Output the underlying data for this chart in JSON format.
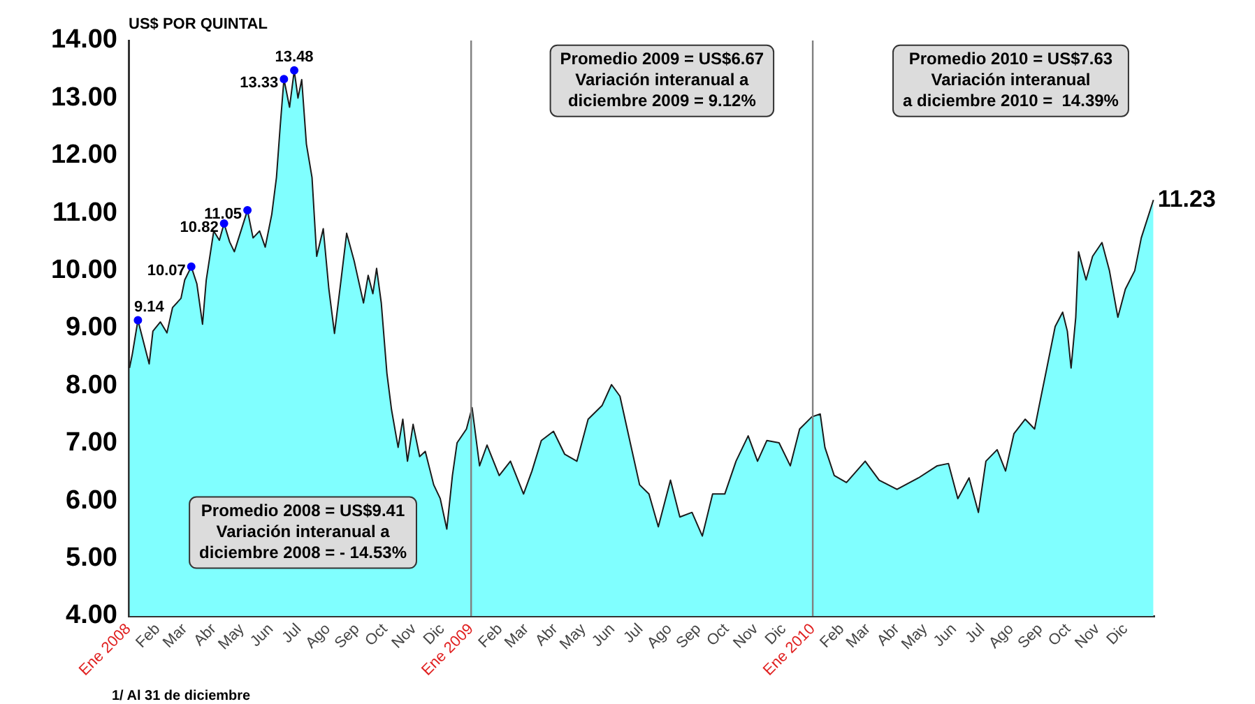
{
  "chart_data": {
    "type": "area",
    "ylabel": "US$ POR QUINTAL",
    "x": [
      "2008-01-02",
      "2008-01-05",
      "2008-01-11",
      "2008-01-23",
      "2008-01-27",
      "2008-02-04",
      "2008-02-11",
      "2008-02-17",
      "2008-02-26",
      "2008-03-01",
      "2008-03-08",
      "2008-03-14",
      "2008-03-20",
      "2008-03-24",
      "2008-04-01",
      "2008-04-07",
      "2008-04-12",
      "2008-04-18",
      "2008-04-23",
      "2008-05-01",
      "2008-05-07",
      "2008-05-13",
      "2008-05-20",
      "2008-05-26",
      "2008-06-02",
      "2008-06-07",
      "2008-06-11",
      "2008-06-15",
      "2008-06-21",
      "2008-06-26",
      "2008-06-30",
      "2008-07-04",
      "2008-07-09",
      "2008-07-15",
      "2008-07-20",
      "2008-07-27",
      "2008-08-02",
      "2008-08-08",
      "2008-08-15",
      "2008-08-21",
      "2008-08-29",
      "2008-09-08",
      "2008-09-13",
      "2008-09-18",
      "2008-09-22",
      "2008-09-27",
      "2008-10-03",
      "2008-10-08",
      "2008-10-15",
      "2008-10-20",
      "2008-10-25",
      "2008-10-31",
      "2008-11-07",
      "2008-11-13",
      "2008-11-22",
      "2008-11-29",
      "2008-12-06",
      "2008-12-12",
      "2008-12-17",
      "2008-12-27",
      "2009-01-02",
      "2009-01-10",
      "2009-01-18",
      "2009-01-31",
      "2009-02-12",
      "2009-02-26",
      "2009-03-07",
      "2009-03-17",
      "2009-03-30",
      "2009-04-11",
      "2009-04-24",
      "2009-05-06",
      "2009-05-21",
      "2009-05-31",
      "2009-06-09",
      "2009-06-20",
      "2009-06-30",
      "2009-07-10",
      "2009-07-20",
      "2009-08-02",
      "2009-08-12",
      "2009-08-25",
      "2009-09-05",
      "2009-09-16",
      "2009-09-29",
      "2009-10-11",
      "2009-10-24",
      "2009-11-03",
      "2009-11-13",
      "2009-11-26",
      "2009-12-08",
      "2009-12-18",
      "2009-12-31",
      "2010-01-09",
      "2010-01-14",
      "2010-01-24",
      "2010-02-06",
      "2010-02-26",
      "2010-03-13",
      "2010-04-01",
      "2010-04-24",
      "2010-05-14",
      "2010-05-26",
      "2010-06-05",
      "2010-06-17",
      "2010-06-27",
      "2010-07-05",
      "2010-07-17",
      "2010-07-26",
      "2010-08-04",
      "2010-08-16",
      "2010-08-26",
      "2010-08-31",
      "2010-09-07",
      "2010-09-17",
      "2010-09-25",
      "2010-09-30",
      "2010-10-04",
      "2010-10-09",
      "2010-10-12",
      "2010-10-20",
      "2010-10-27",
      "2010-11-06",
      "2010-11-14",
      "2010-11-23",
      "2010-12-01",
      "2010-12-11",
      "2010-12-18",
      "2010-12-31"
    ],
    "series": [
      {
        "color": "#80ffff",
        "values": [
          8.31,
          8.55,
          9.14,
          8.38,
          8.95,
          9.11,
          8.92,
          9.36,
          9.52,
          9.84,
          10.07,
          9.77,
          9.07,
          9.84,
          10.69,
          10.53,
          10.82,
          10.5,
          10.33,
          10.74,
          11.05,
          10.57,
          10.69,
          10.41,
          10.98,
          11.62,
          12.51,
          13.33,
          12.84,
          13.48,
          13.0,
          13.32,
          12.2,
          11.62,
          10.25,
          10.73,
          9.68,
          8.91,
          9.84,
          10.65,
          10.17,
          9.44,
          9.92,
          9.6,
          10.04,
          9.44,
          8.22,
          7.58,
          6.93,
          7.42,
          6.69,
          7.33,
          6.77,
          6.86,
          6.28,
          6.04,
          5.51,
          6.44,
          7.01,
          7.25,
          7.62,
          6.61,
          6.97,
          6.44,
          6.69,
          6.12,
          6.52,
          7.05,
          7.21,
          6.81,
          6.69,
          7.42,
          7.66,
          8.02,
          7.82,
          7.01,
          6.28,
          6.12,
          5.55,
          6.36,
          5.72,
          5.8,
          5.39,
          6.12,
          6.12,
          6.69,
          7.13,
          6.69,
          7.05,
          7.01,
          6.61,
          7.25,
          7.46,
          7.51,
          6.93,
          6.44,
          6.32,
          6.69,
          6.36,
          6.2,
          6.4,
          6.61,
          6.65,
          6.04,
          6.4,
          5.8,
          6.69,
          6.89,
          6.52,
          7.17,
          7.42,
          7.25,
          7.66,
          8.22,
          9.03,
          9.28,
          8.95,
          8.31,
          9.19,
          10.33,
          9.84,
          10.25,
          10.49,
          10.0,
          9.19,
          9.68,
          10.0,
          10.57,
          11.23
        ],
        "value_labels": [
          null,
          null,
          "9.14",
          null,
          null,
          null,
          null,
          null,
          null,
          null,
          "10.07",
          null,
          null,
          null,
          null,
          null,
          "10.82",
          null,
          null,
          null,
          "11.05",
          null,
          null,
          null,
          null,
          null,
          null,
          "13.33",
          null,
          "13.48",
          null,
          null,
          null,
          null,
          null,
          null,
          null,
          null,
          null,
          null,
          null,
          null,
          null,
          null,
          null,
          null,
          null,
          null,
          null,
          null,
          null,
          null,
          null,
          null,
          null,
          null,
          null,
          null,
          null,
          null,
          null,
          null,
          null,
          null,
          null,
          null,
          null,
          null,
          null,
          null,
          null,
          null,
          null,
          null,
          null,
          null,
          null,
          null,
          null,
          null,
          null,
          null,
          null,
          null,
          null,
          null,
          null,
          null,
          null,
          null,
          null,
          null,
          null,
          null,
          null,
          null,
          null,
          null,
          null,
          null,
          null,
          null,
          null,
          null,
          null,
          null,
          null,
          null,
          null,
          null,
          null,
          null,
          null,
          null,
          null,
          null,
          null,
          null,
          null,
          null,
          null,
          null,
          null,
          null,
          null,
          null,
          null,
          null,
          "11.23"
        ]
      },
      {
        "type": "scatter",
        "color": "#0000ff",
        "marker": "circle",
        "x": [
          "2008-01-11",
          "2008-03-08",
          "2008-04-12",
          "2008-05-07",
          "2008-06-15",
          "2008-06-26"
        ],
        "values": [
          9.14,
          10.07,
          10.82,
          11.05,
          13.33,
          13.48
        ]
      }
    ],
    "xlim": [
      "2008-01-01",
      "2011-01-01"
    ],
    "xticks": [
      {
        "value": "2008-01-01",
        "label": "Ene 2008"
      },
      {
        "value": "2008-02-01",
        "label": "Feb"
      },
      {
        "value": "2008-03-01",
        "label": "Mar"
      },
      {
        "value": "2008-04-01",
        "label": "Abr"
      },
      {
        "value": "2008-05-01",
        "label": "May"
      },
      {
        "value": "2008-06-01",
        "label": "Jun"
      },
      {
        "value": "2008-07-01",
        "label": "Jul"
      },
      {
        "value": "2008-08-01",
        "label": "Ago"
      },
      {
        "value": "2008-09-01",
        "label": "Sep"
      },
      {
        "value": "2008-10-01",
        "label": "Oct"
      },
      {
        "value": "2008-11-01",
        "label": "Nov"
      },
      {
        "value": "2008-12-01",
        "label": "Dic"
      },
      {
        "value": "2009-01-01",
        "label": "Ene 2009"
      },
      {
        "value": "2009-02-01",
        "label": "Feb"
      },
      {
        "value": "2009-03-01",
        "label": "Mar"
      },
      {
        "value": "2009-04-01",
        "label": "Abr"
      },
      {
        "value": "2009-05-01",
        "label": "May"
      },
      {
        "value": "2009-06-01",
        "label": "Jun"
      },
      {
        "value": "2009-07-01",
        "label": "Jul"
      },
      {
        "value": "2009-08-01",
        "label": "Ago"
      },
      {
        "value": "2009-09-01",
        "label": "Sep"
      },
      {
        "value": "2009-10-01",
        "label": "Oct"
      },
      {
        "value": "2009-11-01",
        "label": "Nov"
      },
      {
        "value": "2009-12-01",
        "label": "Dic"
      },
      {
        "value": "2010-01-01",
        "label": "Ene 2010"
      },
      {
        "value": "2010-02-01",
        "label": "Feb"
      },
      {
        "value": "2010-03-01",
        "label": "Mar"
      },
      {
        "value": "2010-04-01",
        "label": "Abr"
      },
      {
        "value": "2010-05-01",
        "label": "May"
      },
      {
        "value": "2010-06-01",
        "label": "Jun"
      },
      {
        "value": "2010-07-01",
        "label": "Jul"
      },
      {
        "value": "2010-08-01",
        "label": "Ago"
      },
      {
        "value": "2010-09-01",
        "label": "Sep"
      },
      {
        "value": "2010-10-01",
        "label": "Oct"
      },
      {
        "value": "2010-11-01",
        "label": "Nov"
      },
      {
        "value": "2010-12-01",
        "label": "Dic"
      }
    ],
    "ylim": [
      4,
      14
    ],
    "yticks": [
      {
        "value": 4,
        "label": "4.00"
      },
      {
        "value": 5,
        "label": "5.00"
      },
      {
        "value": 6,
        "label": "6.00"
      },
      {
        "value": 7,
        "label": "7.00"
      },
      {
        "value": 8,
        "label": "8.00"
      },
      {
        "value": 9,
        "label": "9.00"
      },
      {
        "value": 10,
        "label": "10.00"
      },
      {
        "value": 11,
        "label": "11.00"
      },
      {
        "value": 12,
        "label": "12.00"
      },
      {
        "value": 13,
        "label": "13.00"
      },
      {
        "value": 14,
        "label": "14.00"
      }
    ],
    "ref_lines": [
      {
        "axis": "x",
        "value": "2009-01-01",
        "color": "#808080"
      },
      {
        "axis": "x",
        "value": "2010-01-01",
        "color": "#808080"
      }
    ],
    "annotations": [
      "Promedio 2008 = US$9.41\nVariación interanual a\ndiciembre 2008 = - 14.53%",
      "Promedio 2009 = US$6.67\nVariación interanual a\ndiciembre 2009 = 9.12%",
      "Promedio 2010 = US$7.63\nVariación interanual\na diciembre 2010 =  14.39%",
      "1/ Al 31 de diciembre"
    ]
  }
}
